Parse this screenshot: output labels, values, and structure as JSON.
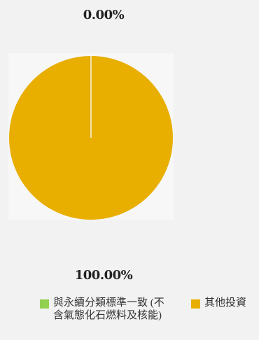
{
  "chart_data": {
    "type": "pie",
    "slices": [
      {
        "label": "與永續分類標準一致 (不含氣態化石燃料及核能)",
        "value": 0.0,
        "value_label": "0.00%",
        "color": "#92d050"
      },
      {
        "label": "其他投資",
        "value": 100.0,
        "value_label": "100.00%",
        "color": "#e8ae00"
      }
    ],
    "legend_position": "bottom"
  }
}
